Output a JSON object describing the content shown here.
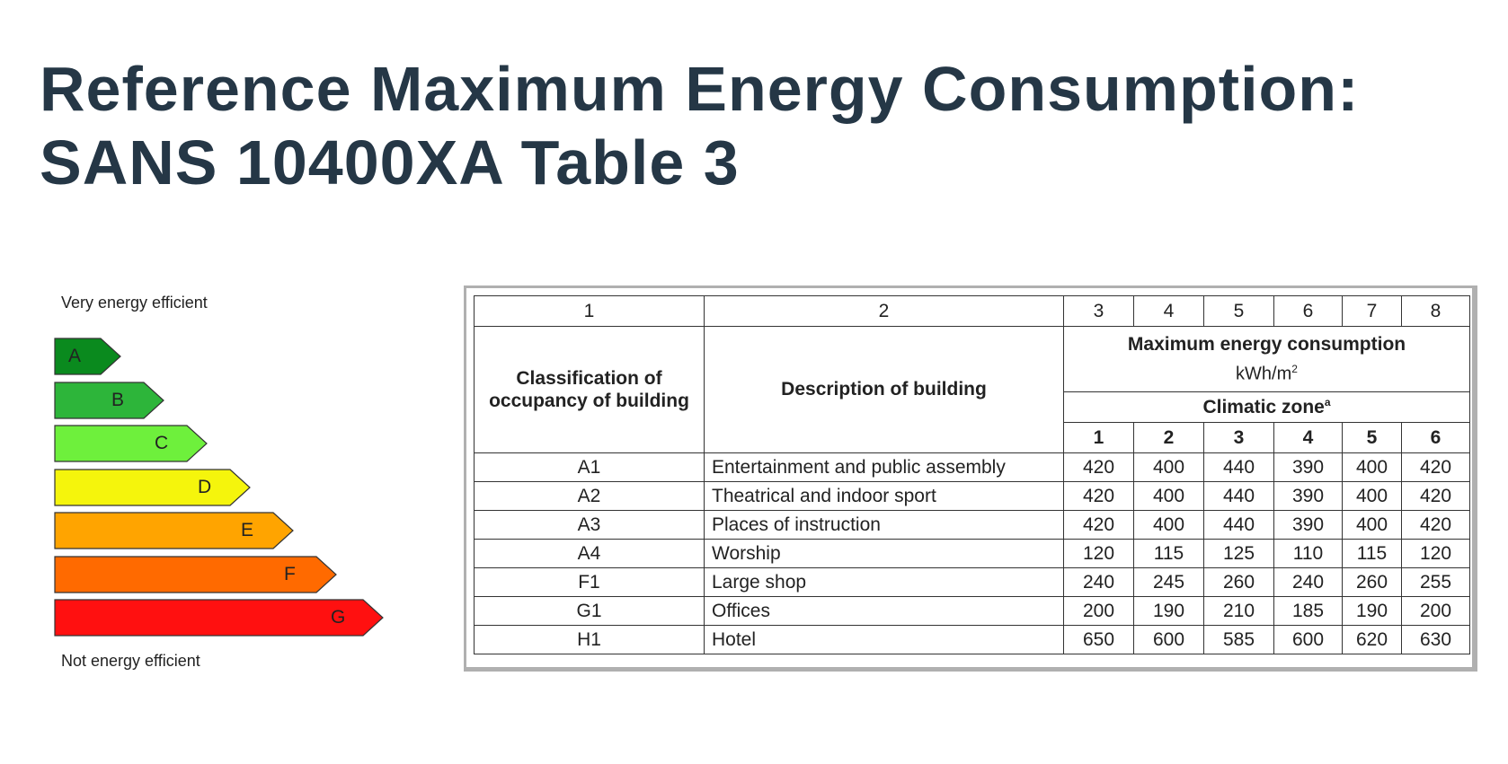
{
  "title": {
    "line1": "Reference Maximum Energy Consumption:",
    "line2": "SANS 10400XA Table 3"
  },
  "rating_scale": {
    "top_label": "Very energy efficient",
    "bottom_label": "Not energy efficient",
    "grades": [
      {
        "letter": "A",
        "color": "#0a8a1e",
        "length": 1
      },
      {
        "letter": "B",
        "color": "#2db53a",
        "length": 2
      },
      {
        "letter": "C",
        "color": "#6ef03c",
        "length": 3
      },
      {
        "letter": "D",
        "color": "#f5f50c",
        "length": 4
      },
      {
        "letter": "E",
        "color": "#ffa400",
        "length": 5
      },
      {
        "letter": "F",
        "color": "#ff6a00",
        "length": 6
      },
      {
        "letter": "G",
        "color": "#ff1010",
        "length": 7
      }
    ]
  },
  "table": {
    "column_numbers": [
      "1",
      "2",
      "3",
      "4",
      "5",
      "6",
      "7",
      "8"
    ],
    "header_classification": "Classification of occupancy of building",
    "header_description": "Description of building",
    "header_max_energy": "Maximum energy consumption",
    "header_unit": "kWh/m",
    "header_unit_sup": "2",
    "header_climatic_zone": "Climatic zone",
    "header_climatic_zone_sup": "a",
    "zones": [
      "1",
      "2",
      "3",
      "4",
      "5",
      "6"
    ],
    "rows": [
      {
        "code": "A1",
        "description": "Entertainment and public assembly",
        "values": [
          "420",
          "400",
          "440",
          "390",
          "400",
          "420"
        ]
      },
      {
        "code": "A2",
        "description": "Theatrical and indoor sport",
        "values": [
          "420",
          "400",
          "440",
          "390",
          "400",
          "420"
        ]
      },
      {
        "code": "A3",
        "description": "Places of instruction",
        "values": [
          "420",
          "400",
          "440",
          "390",
          "400",
          "420"
        ]
      },
      {
        "code": "A4",
        "description": "Worship",
        "values": [
          "120",
          "115",
          "125",
          "110",
          "115",
          "120"
        ]
      },
      {
        "code": "F1",
        "description": "Large shop",
        "values": [
          "240",
          "245",
          "260",
          "240",
          "260",
          "255"
        ]
      },
      {
        "code": "G1",
        "description": "Offices",
        "values": [
          "200",
          "190",
          "210",
          "185",
          "190",
          "200"
        ]
      },
      {
        "code": "H1",
        "description": "Hotel",
        "values": [
          "650",
          "600",
          "585",
          "600",
          "620",
          "630"
        ]
      }
    ]
  }
}
